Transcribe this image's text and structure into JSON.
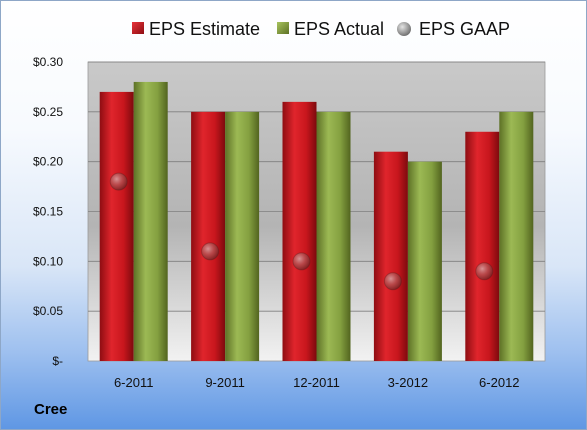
{
  "company": "Cree",
  "chart_data": {
    "type": "bar",
    "categories": [
      "6-2011",
      "9-2011",
      "12-2011",
      "3-2012",
      "6-2012"
    ],
    "series": [
      {
        "name": "EPS Estimate",
        "type": "bar",
        "color": "#c0141b",
        "values": [
          0.27,
          0.25,
          0.26,
          0.21,
          0.23
        ]
      },
      {
        "name": "EPS Actual",
        "type": "bar",
        "color": "#7f9a3a",
        "values": [
          0.28,
          0.25,
          0.25,
          0.2,
          0.25
        ]
      },
      {
        "name": "EPS GAAP",
        "type": "scatter",
        "color": "#9a9a9a",
        "values": [
          0.18,
          0.11,
          0.1,
          0.08,
          0.09
        ]
      }
    ],
    "ylim": [
      0,
      0.3
    ],
    "yticks": [
      0,
      0.05,
      0.1,
      0.15,
      0.2,
      0.25,
      0.3
    ],
    "ytick_labels": [
      "$-",
      "$0.05",
      "$0.10",
      "$0.15",
      "$0.20",
      "$0.25",
      "$0.30"
    ],
    "grid": true,
    "legend": "top"
  }
}
